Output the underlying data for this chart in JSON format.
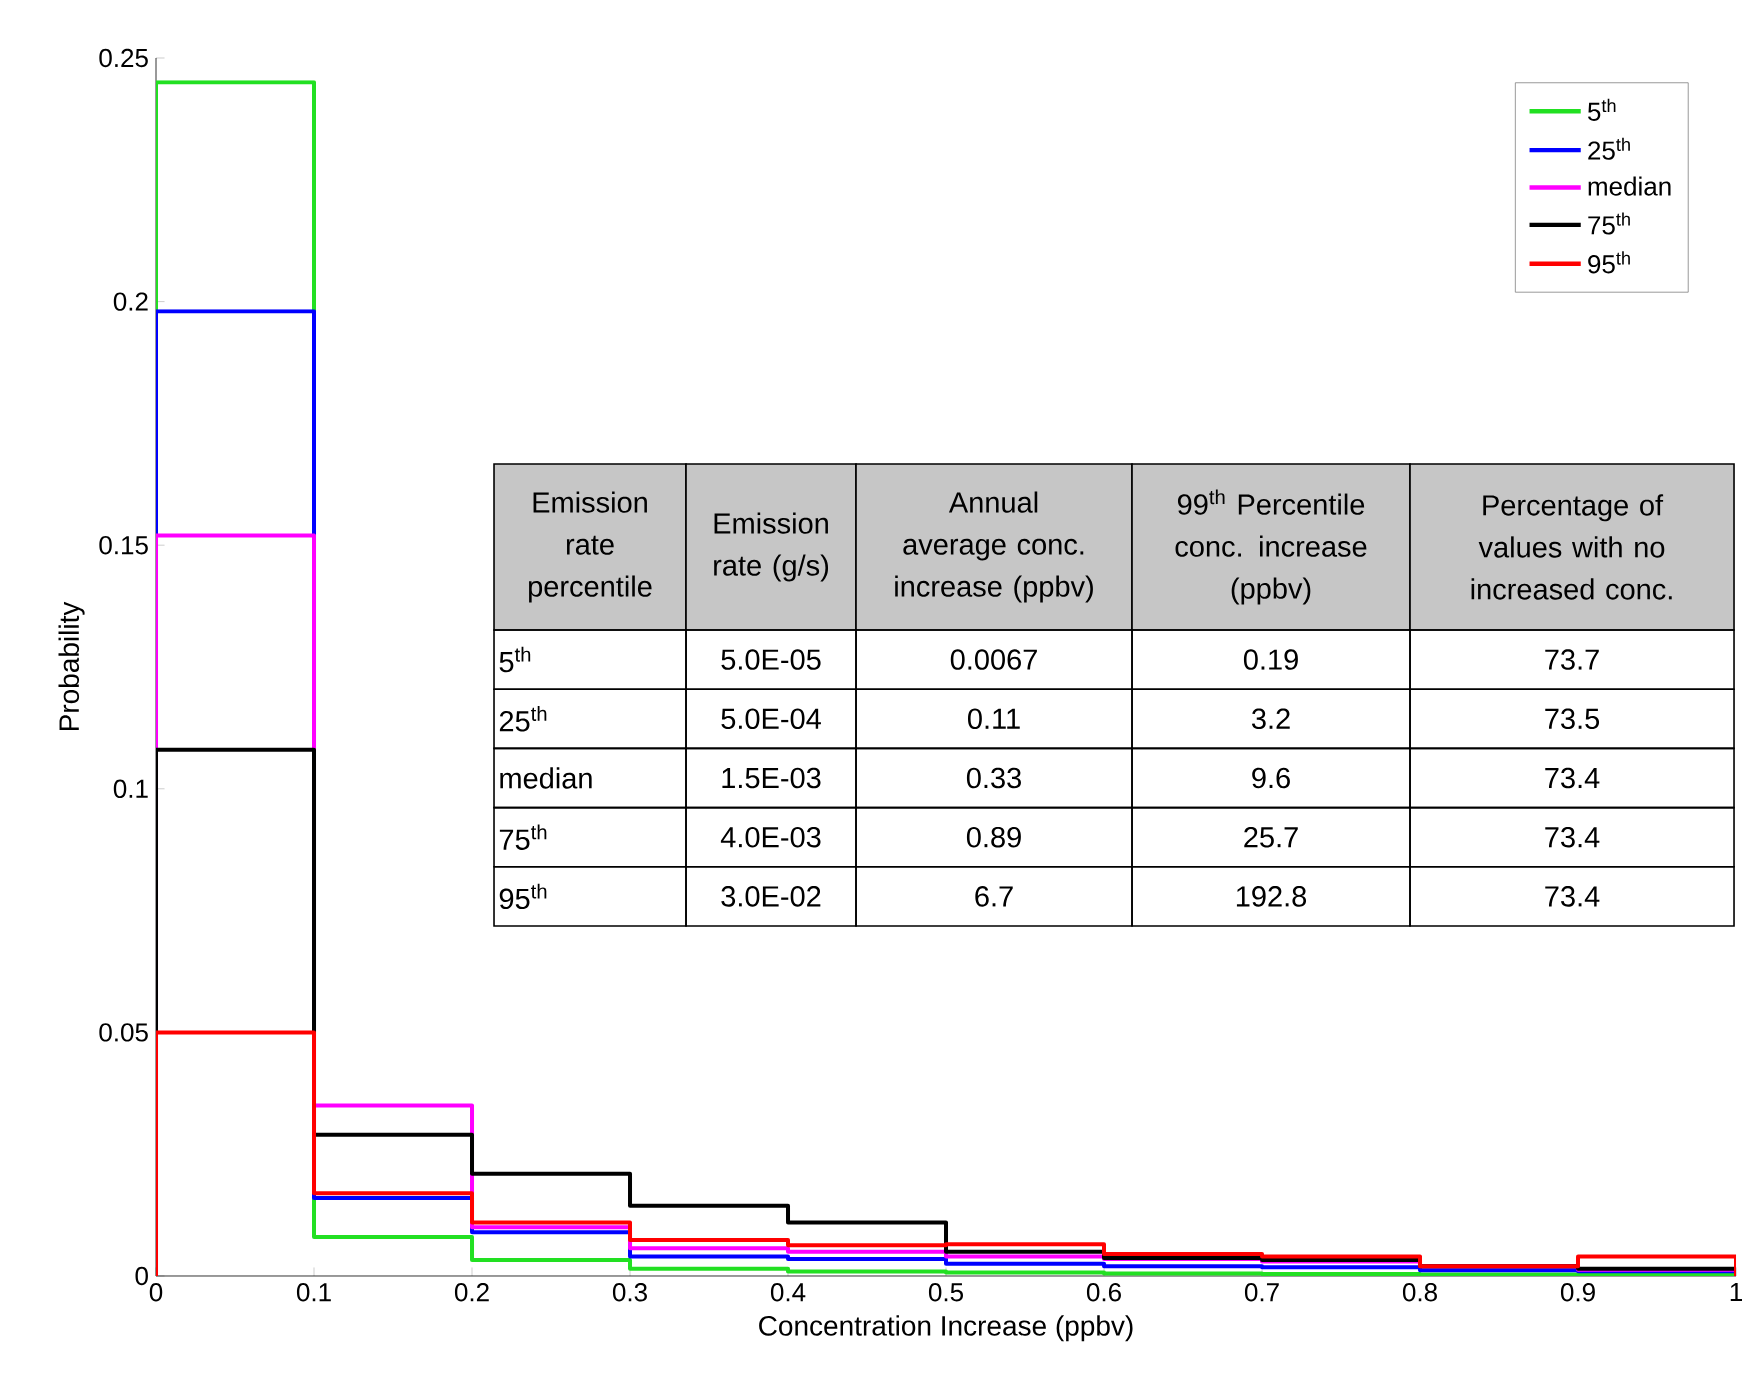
{
  "chart_data": {
    "type": "histogram",
    "xlabel": "Concentration Increase (ppbv)",
    "ylabel": "Probability",
    "bins": [
      0,
      0.1,
      0.2,
      0.3,
      0.4,
      0.5,
      0.6,
      0.7,
      0.8,
      0.9,
      1
    ],
    "series": [
      {
        "name": "5$^{th}$",
        "color": "#22e022",
        "values": [
          0.245,
          0.008,
          0.0033,
          0.0015,
          0.0009,
          0.0007,
          0.0005,
          0.0004,
          0.0003,
          0.0002
        ]
      },
      {
        "name": "25$^{th}$",
        "color": "#0000ff",
        "values": [
          0.198,
          0.016,
          0.009,
          0.004,
          0.0035,
          0.0025,
          0.002,
          0.0018,
          0.0012,
          0.001
        ]
      },
      {
        "name": "median",
        "color": "#ff00ff",
        "values": [
          0.152,
          0.035,
          0.01,
          0.0057,
          0.005,
          0.004,
          0.0035,
          0.003,
          0.002,
          0.0013
        ]
      },
      {
        "name": "75$^{th}$",
        "color": "#000000",
        "values": [
          0.108,
          0.029,
          0.021,
          0.0144,
          0.011,
          0.005,
          0.0037,
          0.0033,
          0.002,
          0.0015
        ]
      },
      {
        "name": "95$^{th}$",
        "color": "#ff0000",
        "values": [
          0.05,
          0.017,
          0.011,
          0.0074,
          0.0063,
          0.0065,
          0.0045,
          0.004,
          0.002,
          0.004
        ]
      }
    ],
    "xlim": [
      0,
      1
    ],
    "ylim": [
      0,
      0.25
    ],
    "xticks": [
      0,
      0.1,
      0.2,
      0.3,
      0.4,
      0.5,
      0.6,
      0.7,
      0.8,
      0.9,
      1
    ],
    "yticks": [
      0,
      0.05,
      0.1,
      0.15,
      0.2,
      0.25
    ],
    "grid": false,
    "legend": "top right",
    "line_style": "solid",
    "annotations": [
      "Emission rate percentile",
      "Emission rate (g/s)",
      "Annual average conc. increase (ppbv)",
      "99$^{th}$ Percentile conc. increase (ppbv)",
      "Percentage of values with no increased conc.",
      "5$^{th}$",
      "5.0E-05",
      "0.0067",
      "0.19",
      "73.7",
      "25$^{th}$",
      "5.0E-04",
      "0.11",
      "3.2",
      "73.5",
      "median",
      "1.5E-03",
      "0.33",
      "9.6",
      "73.4",
      "75$^{th}$",
      "4.0E-03",
      "0.89",
      "25.7",
      "73.4",
      "95$^{th}$",
      "3.0E-02",
      "6.7",
      "192.8",
      "73.4"
    ]
  }
}
